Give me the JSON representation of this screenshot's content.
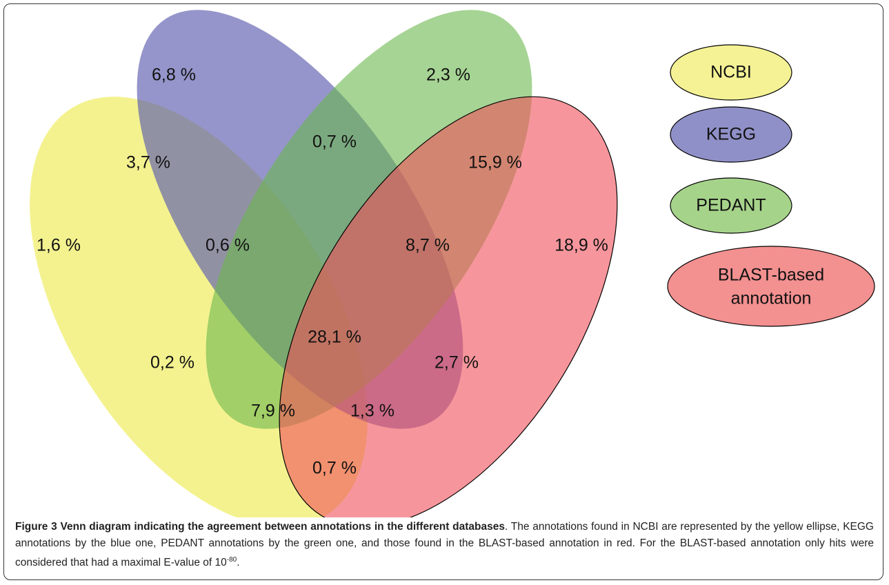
{
  "sets": [
    {
      "label": "NCBI"
    },
    {
      "label": "KEGG"
    },
    {
      "label": "PEDANT"
    },
    {
      "label": "BLAST-based",
      "label2": "annotation"
    }
  ],
  "regions": [
    {
      "label": "6,8 %"
    },
    {
      "label": "2,3 %"
    },
    {
      "label": "0,7 %"
    },
    {
      "label": "3,7 %"
    },
    {
      "label": "15,9 %"
    },
    {
      "label": "1,6 %"
    },
    {
      "label": "0,6 %"
    },
    {
      "label": "8,7 %"
    },
    {
      "label": "18,9 %"
    },
    {
      "label": "28,1 %"
    },
    {
      "label": "0,2 %"
    },
    {
      "label": "2,7 %"
    },
    {
      "label": "7,9 %"
    },
    {
      "label": "1,3 %"
    },
    {
      "label": "0,7 %"
    }
  ],
  "caption": {
    "title": "Figure 3 Venn diagram indicating the agreement between annotations in the different databases",
    "text": ". The annotations found in NCBI are represented by the yellow ellipse, KEGG annotations by the blue one, PEDANT annotations by the green one, and those found in the BLAST-based annotation in red. For the BLAST-based annotation only hits were considered that had a maximal E-value of 10",
    "superscript": "-80",
    "end": "."
  }
}
